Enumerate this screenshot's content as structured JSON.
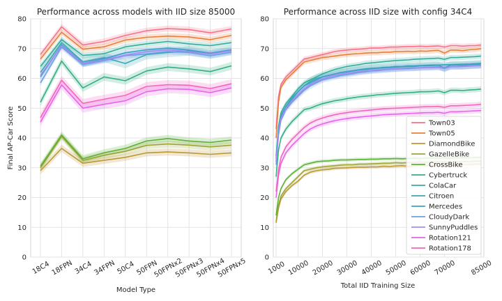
{
  "chart_data": [
    {
      "type": "line",
      "title": "Performance across models with IID size 85000",
      "xlabel": "Model Type",
      "ylabel": "Final AP-Car Score",
      "ylim": [
        0,
        80
      ],
      "yticks": [
        0,
        10,
        20,
        30,
        40,
        50,
        60,
        70,
        80
      ],
      "categories": [
        "18C4",
        "18FPN",
        "34C4",
        "34FPN",
        "50C4",
        "50FPN",
        "50FPNx2",
        "50FPNx3",
        "50FPNx4",
        "50FPNx5"
      ],
      "grid": true,
      "series": [
        {
          "name": "Town03",
          "color": "#f77189",
          "values": [
            68.0,
            77.3,
            71.2,
            72.4,
            74.4,
            76.0,
            76.7,
            76.4,
            75.3,
            76.6
          ],
          "band": 1.0
        },
        {
          "name": "Town05",
          "color": "#e6803a",
          "values": [
            66.5,
            75.5,
            69.8,
            70.6,
            72.9,
            73.8,
            74.2,
            73.9,
            73.0,
            74.4
          ],
          "band": 1.0
        },
        {
          "name": "DiamondBike",
          "color": "#bb9833",
          "values": [
            29.0,
            36.5,
            31.5,
            32.5,
            33.5,
            35.0,
            35.3,
            35.0,
            34.5,
            35.0
          ],
          "band": 1.2
        },
        {
          "name": "GazelleBike",
          "color": "#9ca432",
          "values": [
            30.0,
            40.5,
            32.5,
            34.2,
            35.5,
            37.5,
            38.0,
            37.6,
            37.0,
            37.6
          ],
          "band": 1.2
        },
        {
          "name": "CrossBike",
          "color": "#5cb138",
          "values": [
            30.5,
            41.0,
            33.0,
            35.0,
            36.5,
            39.0,
            39.8,
            39.0,
            38.5,
            39.3
          ],
          "band": 1.2
        },
        {
          "name": "Cybertruck",
          "color": "#34ae81",
          "values": [
            52.0,
            65.8,
            56.8,
            60.5,
            59.2,
            62.5,
            63.8,
            63.2,
            62.3,
            64.2
          ],
          "band": 1.3
        },
        {
          "name": "ColaCar",
          "color": "#37ab9c",
          "values": [
            64.0,
            73.0,
            67.7,
            68.3,
            70.6,
            71.6,
            72.4,
            71.6,
            71.0,
            72.0
          ],
          "band": 1.0
        },
        {
          "name": "Citroen",
          "color": "#39a8ae",
          "values": [
            62.0,
            72.0,
            65.5,
            67.0,
            65.0,
            68.0,
            68.7,
            69.2,
            68.2,
            69.5
          ],
          "band": 1.6
        },
        {
          "name": "Mercedes",
          "color": "#3ca2c3",
          "values": [
            60.5,
            71.3,
            65.0,
            66.6,
            68.6,
            69.6,
            70.2,
            69.5,
            68.5,
            69.6
          ],
          "band": 1.0
        },
        {
          "name": "CloudyDark",
          "color": "#6b9ee8",
          "values": [
            58.5,
            70.5,
            64.7,
            66.0,
            67.6,
            68.2,
            69.0,
            68.7,
            67.6,
            68.8
          ],
          "band": 1.0
        },
        {
          "name": "SunnyPuddles",
          "color": "#a48cf4",
          "values": [
            61.0,
            71.0,
            65.0,
            66.3,
            67.8,
            69.0,
            69.6,
            69.0,
            68.2,
            69.3
          ],
          "band": 1.0
        },
        {
          "name": "Rotation121",
          "color": "#e763ec",
          "values": [
            45.3,
            57.8,
            50.0,
            51.3,
            52.5,
            55.5,
            56.5,
            56.3,
            55.2,
            56.8
          ],
          "band": 1.5
        },
        {
          "name": "Rotation178",
          "color": "#f265bf",
          "values": [
            46.8,
            59.4,
            51.6,
            53.0,
            54.3,
            57.3,
            57.9,
            57.7,
            56.6,
            58.2
          ],
          "band": 1.5
        }
      ]
    },
    {
      "type": "line",
      "title": "Performance across IID size with config 34C4",
      "xlabel": "Total IID Training Size",
      "ylabel": "",
      "ylim": [
        0,
        80
      ],
      "yticks": [
        0,
        10,
        20,
        30,
        40,
        50,
        60,
        70,
        80
      ],
      "xlim": [
        1000,
        85000
      ],
      "xticks": [
        1000,
        10000,
        20000,
        30000,
        40000,
        50000,
        60000,
        70000,
        85000
      ],
      "xticklabels": [
        "1000",
        "10000",
        "20000",
        "30000",
        "40000",
        "50000",
        "60000",
        "70000",
        "85000"
      ],
      "x": [
        1000,
        2000,
        3000,
        5000,
        7500,
        10000,
        12500,
        15000,
        17500,
        20000,
        22500,
        25000,
        27500,
        30000,
        32500,
        35000,
        37500,
        40000,
        42500,
        45000,
        47500,
        50000,
        52500,
        55000,
        57500,
        60000,
        62500,
        65000,
        67500,
        70000,
        72500,
        75000,
        77500,
        80000,
        82500,
        85000
      ],
      "grid": true,
      "legend_position": "right",
      "series": [
        {
          "name": "Town03",
          "color": "#f77189",
          "values": [
            43,
            54,
            58,
            60.5,
            62.5,
            64.5,
            66.5,
            67,
            67.5,
            68,
            68.5,
            69,
            69.3,
            69.5,
            69.7,
            69.8,
            70,
            70.2,
            70.2,
            70.3,
            70.5,
            70.5,
            70.6,
            70.7,
            70.7,
            70.8,
            70.7,
            70.8,
            70.9,
            70.5,
            71,
            71,
            70.8,
            71,
            71,
            71.2
          ],
          "band": 0.8
        },
        {
          "name": "Town05",
          "color": "#e6803a",
          "values": [
            40,
            52,
            57,
            59.5,
            61.5,
            63.5,
            65.5,
            66,
            66.5,
            67,
            67.2,
            67.5,
            67.8,
            68,
            68.2,
            68.3,
            68.5,
            68.6,
            68.6,
            68.8,
            68.8,
            69,
            69,
            69.1,
            69,
            69.2,
            69.1,
            69.3,
            69.4,
            68.5,
            69.5,
            69.5,
            69.3,
            69.6,
            69.7,
            70
          ],
          "band": 0.9
        },
        {
          "name": "DiamondBike",
          "color": "#bb9833",
          "values": [
            11.5,
            16.5,
            19.5,
            22,
            24,
            25.5,
            27.5,
            28.5,
            29,
            29.3,
            29.5,
            29.8,
            29.9,
            30,
            30.1,
            30.2,
            30.2,
            30.3,
            30.3,
            30.5,
            30.4,
            30.6,
            30.7,
            30.5,
            30.6,
            30.8,
            30.7,
            30.9,
            31,
            31,
            30.9,
            31,
            31.1,
            31.1,
            31.2,
            31.3
          ],
          "band": 0.6
        },
        {
          "name": "GazelleBike",
          "color": "#9ca432",
          "values": [
            12,
            17.5,
            20.5,
            23,
            25,
            27,
            29,
            29.5,
            30,
            30.3,
            30.5,
            30.7,
            30.9,
            31,
            31,
            31.2,
            31.2,
            31.3,
            31.4,
            31.5,
            31.5,
            31.7,
            31.6,
            31.7,
            31.8,
            31.9,
            31.8,
            32,
            32,
            32,
            31.8,
            32,
            32.1,
            32.1,
            32.2,
            32.3
          ],
          "band": 0.6
        },
        {
          "name": "CrossBike",
          "color": "#5cb138",
          "values": [
            14,
            20,
            23,
            26,
            28,
            29.5,
            31,
            31.5,
            32,
            32.2,
            32.3,
            32.5,
            32.6,
            32.6,
            32.7,
            32.8,
            32.8,
            32.9,
            32.9,
            33,
            33,
            33.1,
            33,
            33.1,
            33.2,
            33.1,
            33.2,
            33.3,
            33.2,
            33.3,
            33.2,
            33.3,
            33.4,
            33.3,
            33.4,
            33.5
          ],
          "band": 0.6
        },
        {
          "name": "Cybertruck",
          "color": "#34ae81",
          "values": [
            27,
            36,
            40,
            43,
            45.5,
            47.5,
            49.5,
            50,
            50.8,
            51.5,
            52,
            52.5,
            52.8,
            53.2,
            53.5,
            53.8,
            54,
            54.2,
            54.5,
            54.6,
            54.8,
            55,
            55.1,
            55.2,
            55.3,
            55.5,
            55.5,
            55.6,
            55.8,
            55.2,
            56,
            56,
            55.9,
            56.1,
            56.2,
            56.4
          ],
          "band": 0.9
        },
        {
          "name": "ColaCar",
          "color": "#37ab9c",
          "values": [
            34,
            44,
            48.5,
            51.5,
            54,
            56.5,
            58.5,
            59.5,
            60.5,
            61.5,
            62.3,
            63,
            63.5,
            64,
            64.3,
            64.6,
            65,
            65.2,
            65.4,
            65.6,
            65.8,
            66,
            66.1,
            66.2,
            66.4,
            66.5,
            66.6,
            66.7,
            66.8,
            66.4,
            67,
            67,
            67.1,
            67.2,
            67.3,
            67.5
          ],
          "band": 0.9
        },
        {
          "name": "Citroen",
          "color": "#39a8ae",
          "values": [
            32,
            42,
            47,
            50.5,
            53,
            55.5,
            57.5,
            59,
            60,
            60.5,
            61,
            61.5,
            61.9,
            62.2,
            62.5,
            62.8,
            63,
            63.2,
            63.4,
            63.5,
            63.6,
            63.8,
            63.9,
            64,
            64,
            64.2,
            64.2,
            64.3,
            64.4,
            63.5,
            64.5,
            64.5,
            64.4,
            64.6,
            64.7,
            64.8
          ],
          "band": 1.4
        },
        {
          "name": "Mercedes",
          "color": "#3ca2c3",
          "values": [
            33,
            43,
            47.5,
            50.5,
            53.5,
            55.5,
            57.5,
            58.5,
            59.5,
            60.5,
            61,
            61.5,
            62,
            62.3,
            62.6,
            62.9,
            63.2,
            63.4,
            63.5,
            63.7,
            63.8,
            64,
            64,
            64.2,
            64.2,
            64.3,
            64.4,
            64.5,
            64.5,
            64.6,
            64.6,
            64.7,
            64.8,
            64.8,
            64.9,
            65
          ],
          "band": 0.9
        },
        {
          "name": "CloudyDark",
          "color": "#6b9ee8",
          "values": [
            31,
            41,
            46,
            49.5,
            52,
            54,
            56,
            57.5,
            58.5,
            59.5,
            60,
            60.5,
            61,
            61.3,
            61.6,
            62,
            62.2,
            62.5,
            62.6,
            62.8,
            63,
            63.1,
            63.2,
            63.3,
            63.4,
            63.5,
            63.6,
            63.6,
            63.7,
            63.3,
            63.9,
            63.9,
            64,
            64.1,
            64.2,
            64.3
          ],
          "band": 1.0
        },
        {
          "name": "SunnyPuddles",
          "color": "#a48cf4",
          "values": [
            32,
            42,
            46.5,
            50,
            52.5,
            54.5,
            56.5,
            58,
            59,
            59.8,
            60.5,
            61,
            61.4,
            61.8,
            62,
            62.3,
            62.5,
            62.7,
            62.9,
            63,
            63.1,
            63.3,
            63.4,
            63.5,
            63.5,
            63.6,
            63.7,
            63.8,
            63.9,
            63.4,
            64,
            64,
            64.1,
            64.2,
            64.3,
            64.4
          ],
          "band": 1.0
        },
        {
          "name": "Rotation121",
          "color": "#e763ec",
          "values": [
            20,
            27.5,
            31.5,
            35,
            37.5,
            39.5,
            41.5,
            43,
            44,
            44.7,
            45.3,
            45.8,
            46.2,
            46.5,
            46.8,
            47,
            47.2,
            47.4,
            47.6,
            47.8,
            47.9,
            48,
            48.1,
            48.2,
            48.3,
            48.4,
            48.5,
            48.5,
            48.6,
            48.3,
            48.8,
            48.8,
            48.9,
            49,
            49.1,
            49.2
          ],
          "band": 0.9
        },
        {
          "name": "Rotation178",
          "color": "#f265bf",
          "values": [
            22,
            29.5,
            33.5,
            37,
            39.5,
            41.5,
            43.5,
            45,
            46,
            46.7,
            47.3,
            47.8,
            48.2,
            48.5,
            48.8,
            49,
            49.2,
            49.4,
            49.6,
            49.8,
            49.9,
            50,
            50.1,
            50.2,
            50.3,
            50.4,
            50.5,
            50.5,
            50.6,
            50.3,
            50.8,
            50.8,
            50.9,
            51,
            51.1,
            51.3
          ],
          "band": 0.9
        }
      ]
    }
  ]
}
